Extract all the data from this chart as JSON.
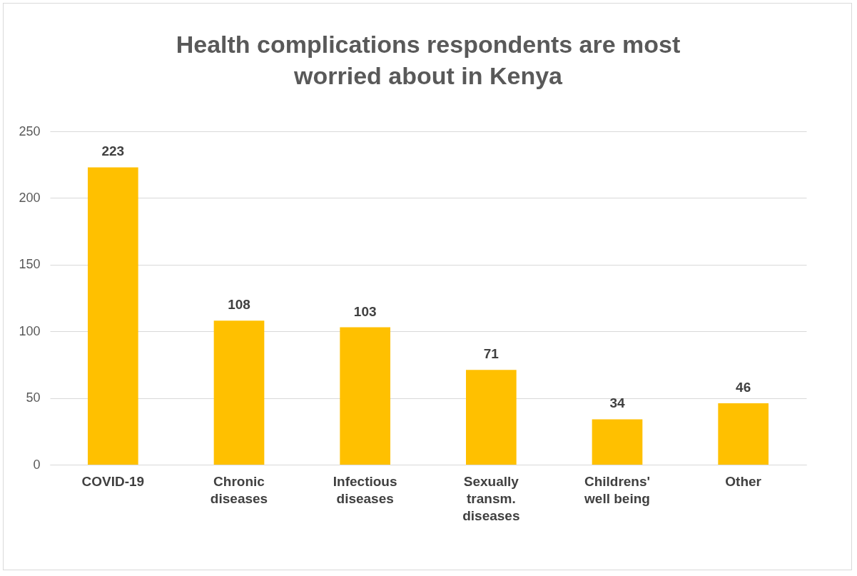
{
  "chart_data": {
    "type": "bar",
    "title": "Health complications respondents are most worried about in Kenya",
    "categories": [
      "COVID-19",
      "Chronic diseases",
      "Infectious diseases",
      "Sexually transm. diseases",
      "Childrens' well being",
      "Other"
    ],
    "values": [
      223,
      108,
      103,
      71,
      34,
      46
    ],
    "color": "#ffc000",
    "ylim": [
      0,
      250
    ],
    "yticks": [
      0,
      50,
      100,
      150,
      200,
      250
    ],
    "grid": "y",
    "data_labels": true
  }
}
